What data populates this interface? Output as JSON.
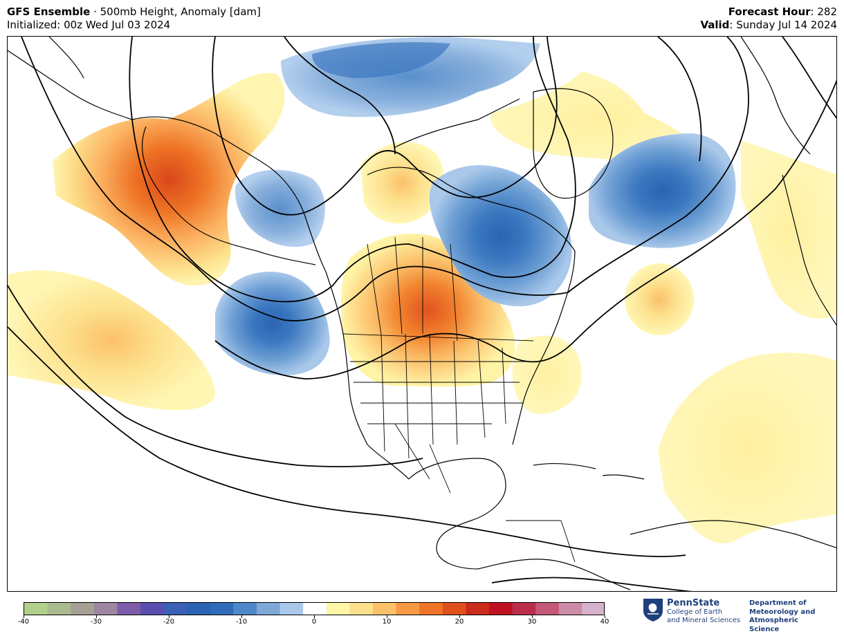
{
  "header": {
    "model": "GFS Ensemble",
    "separator": " · ",
    "field": "500mb Height, Anomaly [dam]",
    "init_label": "Initialized: 00z Wed Jul 03 2024",
    "forecast_key": "Forecast Hour",
    "forecast_value": ": 282",
    "valid_key": "Valid",
    "valid_value": ": Sunday Jul 14 2024"
  },
  "colorbar": {
    "ticks": [
      "-40",
      "-30",
      "-20",
      "-10",
      "0",
      "10",
      "20",
      "30",
      "40"
    ],
    "min": -40,
    "max": 40,
    "colors": [
      "#b3cf8c",
      "#a9bb8e",
      "#a4a194",
      "#9c86a0",
      "#7e5ca8",
      "#5a4fae",
      "#3a61b5",
      "#2a63b3",
      "#2f6bb9",
      "#4f88c8",
      "#7fa8d7",
      "#a9c8ea",
      "#ffffff",
      "#fff6a8",
      "#fde08c",
      "#fbc06a",
      "#f79a45",
      "#ef7425",
      "#e0501c",
      "#cc2a1b",
      "#c01120",
      "#bb2e4a",
      "#c45878",
      "#cc8ba6",
      "#d6b3cc"
    ]
  },
  "map": {
    "description_colors": {
      "strong_pos": "#e8571d",
      "pos": "#fbb86a",
      "weak_pos": "#fff3a6",
      "neg": "#7fa8d7",
      "strong_neg": "#2f6bb9"
    }
  },
  "logo": {
    "institution": "PennState",
    "college_line1": "College of Earth",
    "college_line2": "and Mineral Sciences",
    "dept_line1": "Department of",
    "dept_line2": "Meteorology and",
    "dept_line3": "Atmospheric Science"
  }
}
